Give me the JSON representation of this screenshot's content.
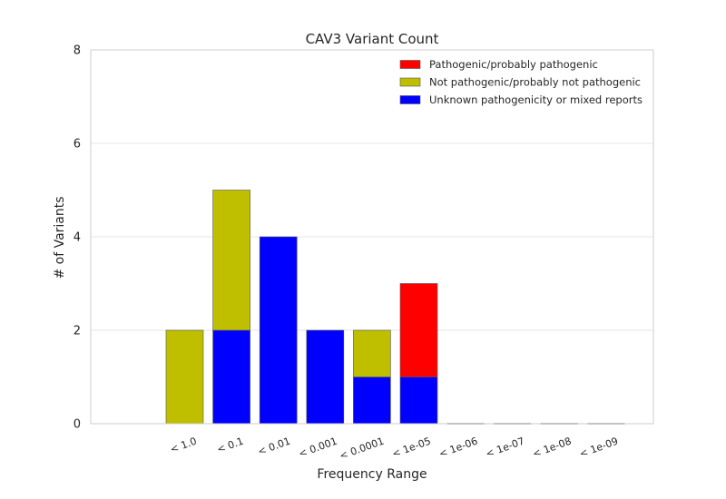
{
  "chart_data": {
    "type": "bar",
    "stacked": true,
    "title": "CAV3 Variant Count",
    "xlabel": "Frequency Range",
    "ylabel": "# of Variants",
    "ylim": [
      0,
      8
    ],
    "yticks": [
      "0",
      "2",
      "4",
      "6",
      "8"
    ],
    "categories": [
      "< 1.0",
      "< 0.1",
      "< 0.01",
      "< 0.001",
      "< 0.0001",
      "< 1e-05",
      "< 1e-06",
      "< 1e-07",
      "< 1e-08",
      "< 1e-09"
    ],
    "series": [
      {
        "name": "Unknown pathogenicity or mixed reports",
        "color": "#0000ff",
        "values": [
          0,
          2,
          4,
          2,
          1,
          1,
          0,
          0,
          0,
          0
        ]
      },
      {
        "name": "Not pathogenic/probably not pathogenic",
        "color": "#bfbf00",
        "values": [
          2,
          3,
          0,
          0,
          1,
          0,
          0,
          0,
          0,
          0
        ]
      },
      {
        "name": "Pathogenic/probably pathogenic",
        "color": "#ff0000",
        "values": [
          0,
          0,
          0,
          0,
          0,
          2,
          0,
          0,
          0,
          0
        ]
      }
    ],
    "legend_order": [
      "Pathogenic/probably pathogenic",
      "Not pathogenic/probably not pathogenic",
      "Unknown pathogenicity or mixed reports"
    ],
    "legend_position": "top-right",
    "grid": "horizontal"
  }
}
